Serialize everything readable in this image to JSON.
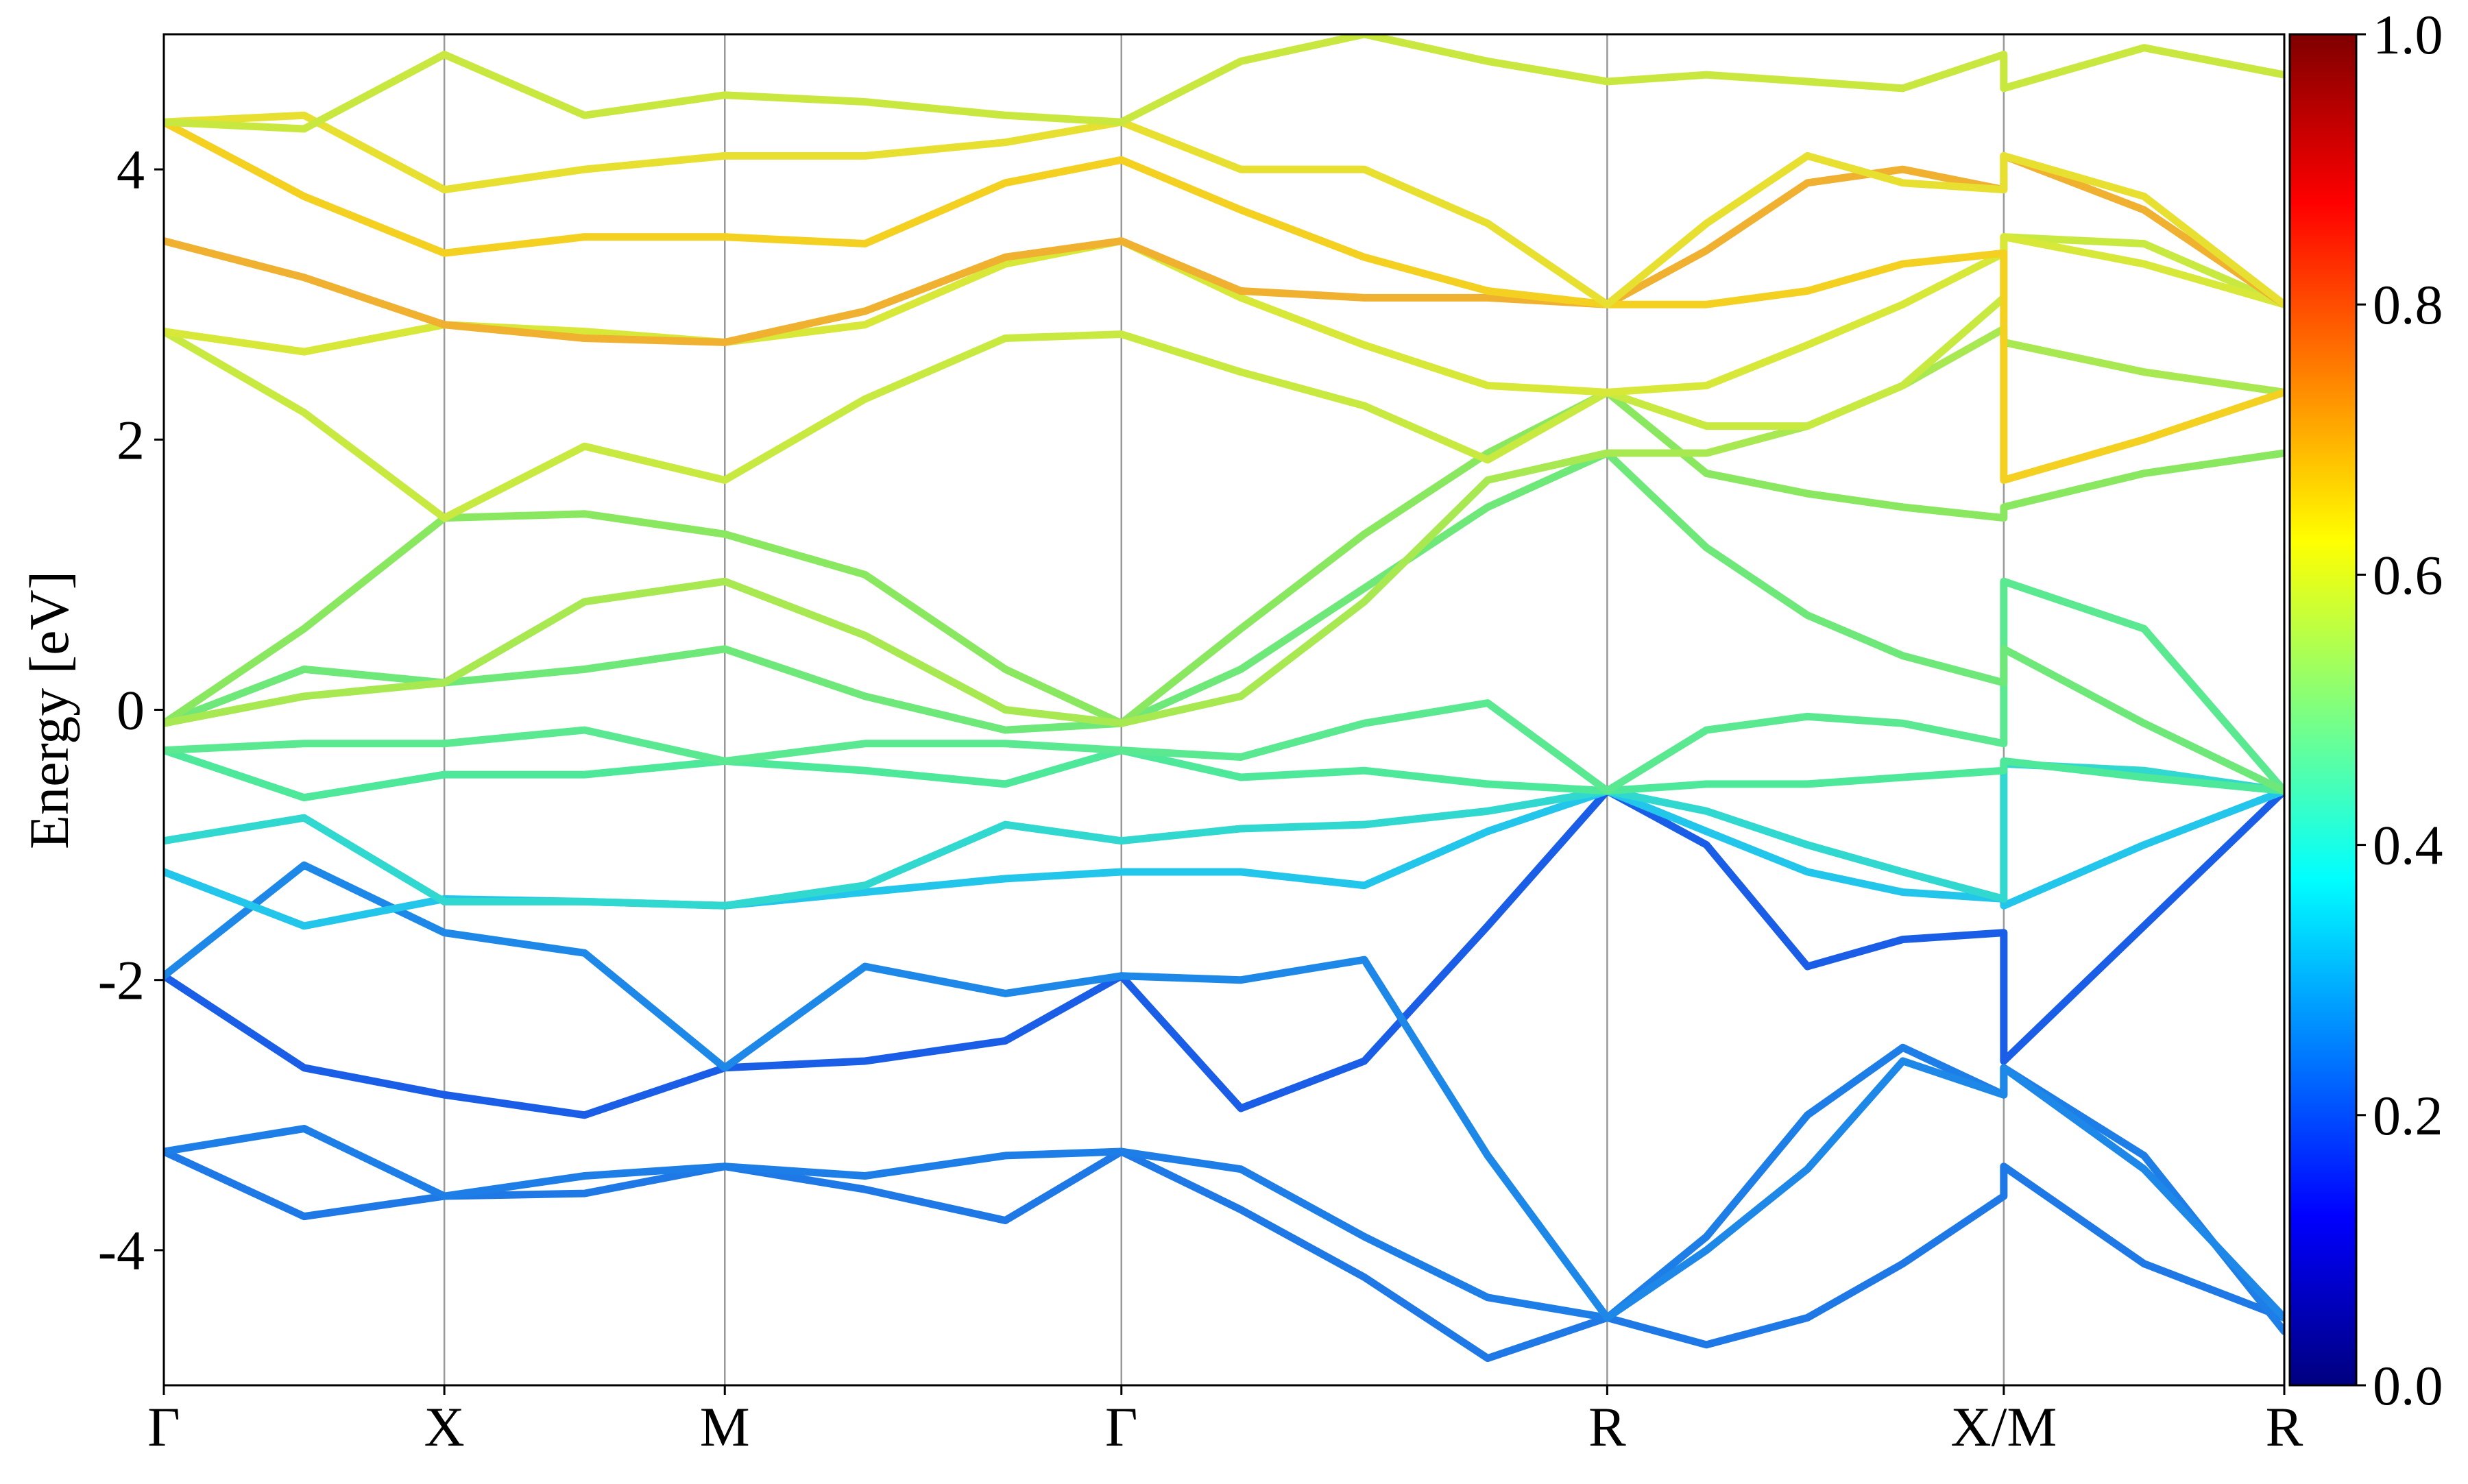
{
  "chart_data": {
    "type": "line",
    "ylabel": "Energy [eV]",
    "x": [
      0,
      0.25,
      0.5,
      0.75,
      1.0,
      1.25,
      1.5,
      1.707,
      1.92,
      2.14,
      2.36,
      2.573,
      2.75,
      2.93,
      3.1,
      3.28,
      3.28,
      3.53,
      3.78
    ],
    "xlim": [
      0,
      3.78
    ],
    "xticks": [
      {
        "value": 0,
        "label": "Γ"
      },
      {
        "value": 0.5,
        "label": "X"
      },
      {
        "value": 1.0,
        "label": "M"
      },
      {
        "value": 1.707,
        "label": "Γ"
      },
      {
        "value": 2.573,
        "label": "R"
      },
      {
        "value": 3.28,
        "label": "X/M"
      },
      {
        "value": 3.78,
        "label": "R"
      }
    ],
    "ylim": [
      -5,
      5
    ],
    "yticks": [
      -4,
      -2,
      0,
      2,
      4
    ],
    "vertical_grid": true,
    "series": [
      {
        "color": "#1e78e6",
        "values": [
          -3.27,
          -3.75,
          -3.6,
          -3.58,
          -3.38,
          -3.55,
          -3.78,
          -3.27,
          -3.7,
          -4.2,
          -4.8,
          -4.5,
          -4.7,
          -4.5,
          -4.1,
          -3.6,
          -3.38,
          -4.1,
          -4.5
        ]
      },
      {
        "color": "#1e7ee8",
        "values": [
          -3.27,
          -3.1,
          -3.6,
          -3.45,
          -3.38,
          -3.45,
          -3.3,
          -3.27,
          -3.4,
          -3.9,
          -4.35,
          -4.5,
          -3.9,
          -3.0,
          -2.5,
          -2.85,
          -2.65,
          -3.3,
          -4.6
        ]
      },
      {
        "color": "#1a5ee8",
        "values": [
          -1.97,
          -2.65,
          -2.85,
          -3.0,
          -2.65,
          -2.6,
          -2.45,
          -1.97,
          -2.95,
          -2.6,
          -1.6,
          -0.6,
          -1.0,
          -1.9,
          -1.7,
          -1.65,
          -2.6,
          -1.6,
          -0.6
        ]
      },
      {
        "color": "#1e88e8",
        "values": [
          -1.97,
          -1.15,
          -1.65,
          -1.8,
          -2.65,
          -1.9,
          -2.1,
          -1.97,
          -2.0,
          -1.85,
          -3.3,
          -4.5,
          -4.0,
          -3.4,
          -2.6,
          -2.85,
          -2.65,
          -3.4,
          -4.5
        ]
      },
      {
        "color": "#22c6ea",
        "values": [
          -1.2,
          -1.6,
          -1.4,
          -1.42,
          -1.45,
          -1.35,
          -1.25,
          -1.2,
          -1.2,
          -1.3,
          -0.9,
          -0.6,
          -0.9,
          -1.2,
          -1.35,
          -1.4,
          -1.45,
          -1.0,
          -0.6
        ]
      },
      {
        "color": "#30d8d0",
        "values": [
          -0.97,
          -0.8,
          -1.42,
          -1.42,
          -1.45,
          -1.3,
          -0.85,
          -0.97,
          -0.88,
          -0.85,
          -0.75,
          -0.6,
          -0.75,
          -1.0,
          -1.2,
          -1.4,
          -0.4,
          -0.45,
          -0.6
        ]
      },
      {
        "color": "#4de89a",
        "values": [
          -0.3,
          -0.65,
          -0.48,
          -0.48,
          -0.38,
          -0.45,
          -0.55,
          -0.3,
          -0.5,
          -0.45,
          -0.55,
          -0.6,
          -0.55,
          -0.55,
          -0.5,
          -0.45,
          -0.38,
          -0.5,
          -0.6
        ]
      },
      {
        "color": "#5ae890",
        "values": [
          -0.3,
          -0.25,
          -0.25,
          -0.15,
          -0.38,
          -0.25,
          -0.25,
          -0.3,
          -0.35,
          -0.1,
          0.05,
          -0.6,
          -0.15,
          -0.05,
          -0.1,
          -0.25,
          0.95,
          0.6,
          -0.6
        ]
      },
      {
        "color": "#6ee878",
        "values": [
          -0.1,
          0.3,
          0.2,
          0.3,
          0.45,
          0.1,
          -0.15,
          -0.1,
          0.3,
          0.9,
          1.5,
          1.9,
          1.2,
          0.7,
          0.4,
          0.2,
          0.45,
          -0.1,
          -0.6
        ]
      },
      {
        "color": "#8ae860",
        "values": [
          -0.1,
          0.6,
          1.42,
          1.45,
          1.3,
          1.0,
          0.3,
          -0.1,
          0.6,
          1.3,
          1.9,
          2.35,
          1.75,
          1.6,
          1.5,
          1.42,
          1.5,
          1.75,
          1.9
        ]
      },
      {
        "color": "#a8e850",
        "values": [
          -0.1,
          0.1,
          0.2,
          0.8,
          0.95,
          0.55,
          0.0,
          -0.1,
          0.1,
          0.8,
          1.7,
          1.9,
          1.9,
          2.1,
          2.4,
          2.82,
          2.72,
          2.5,
          2.35
        ]
      },
      {
        "color": "#c8ea40",
        "values": [
          2.8,
          2.2,
          1.42,
          1.95,
          1.7,
          2.3,
          2.75,
          2.78,
          2.5,
          2.25,
          1.85,
          2.35,
          2.1,
          2.1,
          2.4,
          3.05,
          3.5,
          3.45,
          3.0
        ]
      },
      {
        "color": "#d8e838",
        "values": [
          2.8,
          2.65,
          2.85,
          2.8,
          2.72,
          2.85,
          3.3,
          3.47,
          3.05,
          2.7,
          2.4,
          2.35,
          2.4,
          2.7,
          3.0,
          3.38,
          3.5,
          3.3,
          3.0
        ]
      },
      {
        "color": "#f0b030",
        "values": [
          3.47,
          3.2,
          2.85,
          2.75,
          2.72,
          2.95,
          3.35,
          3.47,
          3.1,
          3.05,
          3.05,
          3.0,
          3.4,
          3.9,
          4.0,
          3.85,
          4.1,
          3.7,
          3.0
        ]
      },
      {
        "color": "#f4d020",
        "values": [
          4.35,
          3.8,
          3.38,
          3.5,
          3.5,
          3.45,
          3.9,
          4.07,
          3.7,
          3.35,
          3.1,
          3.0,
          3.0,
          3.1,
          3.3,
          3.38,
          1.7,
          2.0,
          2.35
        ]
      },
      {
        "color": "#e8e030",
        "values": [
          4.35,
          4.4,
          3.85,
          4.0,
          4.1,
          4.1,
          4.2,
          4.35,
          4.0,
          4.0,
          3.6,
          3.0,
          3.6,
          4.1,
          3.9,
          3.85,
          4.1,
          3.8,
          3.0
        ]
      },
      {
        "color": "#c8e840",
        "values": [
          4.35,
          4.3,
          4.85,
          4.4,
          4.55,
          4.5,
          4.4,
          4.35,
          4.8,
          5.0,
          4.8,
          4.65,
          4.7,
          4.65,
          4.6,
          4.85,
          4.6,
          4.9,
          4.7
        ]
      }
    ],
    "colorbar": {
      "lim": [
        0,
        1
      ],
      "ticks": [
        {
          "value": 0,
          "label": "0.0"
        },
        {
          "value": 0.2,
          "label": "0.2"
        },
        {
          "value": 0.4,
          "label": "0.4"
        },
        {
          "value": 0.6,
          "label": "0.6"
        },
        {
          "value": 0.8,
          "label": "0.8"
        },
        {
          "value": 1.0,
          "label": "1.0"
        }
      ],
      "colormap": [
        "#00007f",
        "#0000ff",
        "#007fff",
        "#00ffff",
        "#7fff7f",
        "#ffff00",
        "#ff7f00",
        "#ff0000",
        "#7f0000"
      ]
    }
  }
}
